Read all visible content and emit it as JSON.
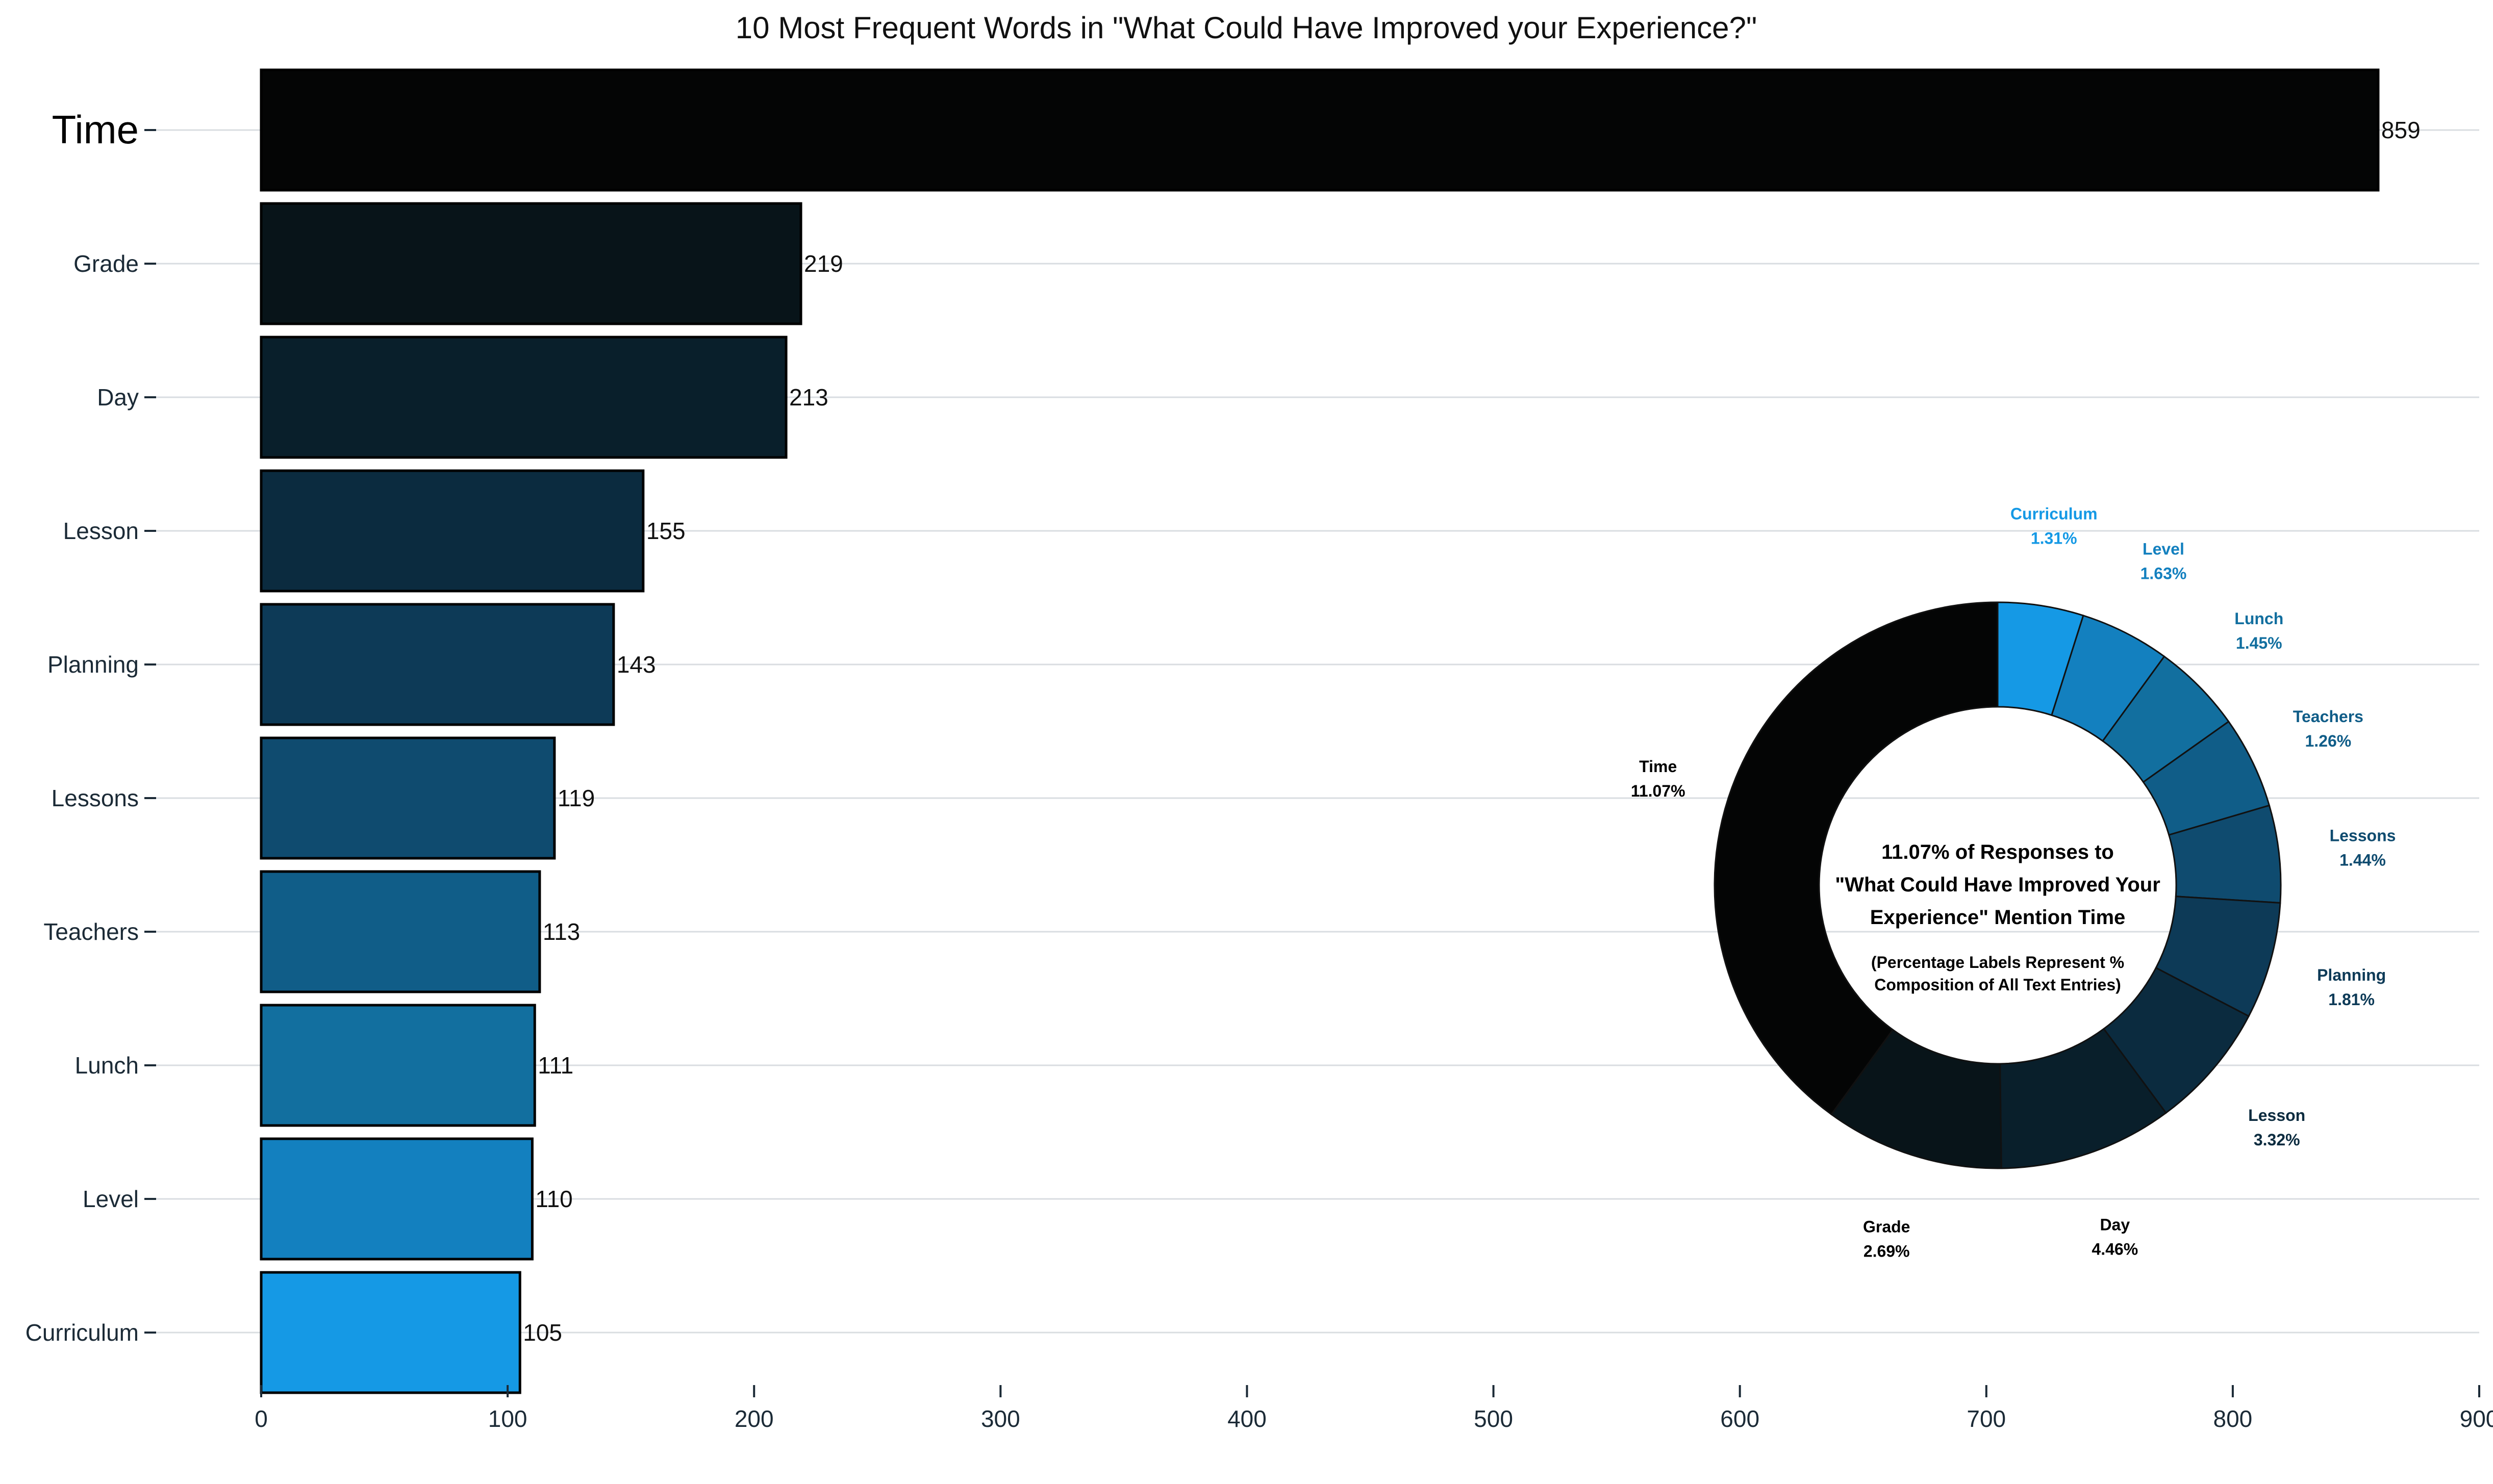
{
  "chart_data": [
    {
      "type": "bar",
      "orientation": "horizontal",
      "title": "10 Most Frequent Words in \"What Could Have Improved your Experience?\"",
      "xlabel": "",
      "ylabel": "",
      "xlim": [
        0,
        900
      ],
      "x_ticks": [
        "0",
        "100",
        "200",
        "300",
        "400",
        "500",
        "600",
        "700",
        "800",
        "900"
      ],
      "grid": "horizontal lines at each category",
      "categories": [
        "Time",
        "Grade",
        "Day",
        "Lesson",
        "Planning",
        "Lessons",
        "Teachers",
        "Lunch",
        "Level",
        "Curriculum"
      ],
      "values": [
        859,
        219,
        213,
        155,
        143,
        119,
        113,
        111,
        110,
        105
      ],
      "value_labels": [
        "859",
        "219",
        "213",
        "155",
        "143",
        "119",
        "113",
        "111",
        "110",
        "105"
      ],
      "colors": [
        "#040505",
        "#081419",
        "#091f2b",
        "#0b2b3f",
        "#0d3a57",
        "#0f4b6f",
        "#105d88",
        "#126f9f",
        "#1380bf",
        "#1599e5"
      ]
    },
    {
      "type": "pie",
      "style": "donut",
      "center_text": [
        "11.07% of Responses to",
        "\"What Could Have Improved Your",
        "Experience\" Mention Time"
      ],
      "center_note": [
        "(Percentage Labels Represent %",
        "Composition of All Text Entries)"
      ],
      "slices": [
        {
          "label": "Curriculum",
          "pct_label": "1.31%",
          "value": 105,
          "color": "#1599e5"
        },
        {
          "label": "Level",
          "pct_label": "1.63%",
          "value": 110,
          "color": "#1380bf"
        },
        {
          "label": "Lunch",
          "pct_label": "1.45%",
          "value": 111,
          "color": "#126f9f"
        },
        {
          "label": "Teachers",
          "pct_label": "1.26%",
          "value": 113,
          "color": "#105d88"
        },
        {
          "label": "Lessons",
          "pct_label": "1.44%",
          "value": 119,
          "color": "#0f4b6f"
        },
        {
          "label": "Planning",
          "pct_label": "1.81%",
          "value": 143,
          "color": "#0d3a57"
        },
        {
          "label": "Lesson",
          "pct_label": "3.32%",
          "value": 155,
          "color": "#0b2b3f"
        },
        {
          "label": "Day",
          "pct_label": "4.46%",
          "value": 213,
          "color": "#091f2b"
        },
        {
          "label": "Grade",
          "pct_label": "2.69%",
          "value": 219,
          "color": "#081419"
        },
        {
          "label": "Time",
          "pct_label": "11.07%",
          "value": 859,
          "color": "#040505"
        }
      ]
    }
  ]
}
